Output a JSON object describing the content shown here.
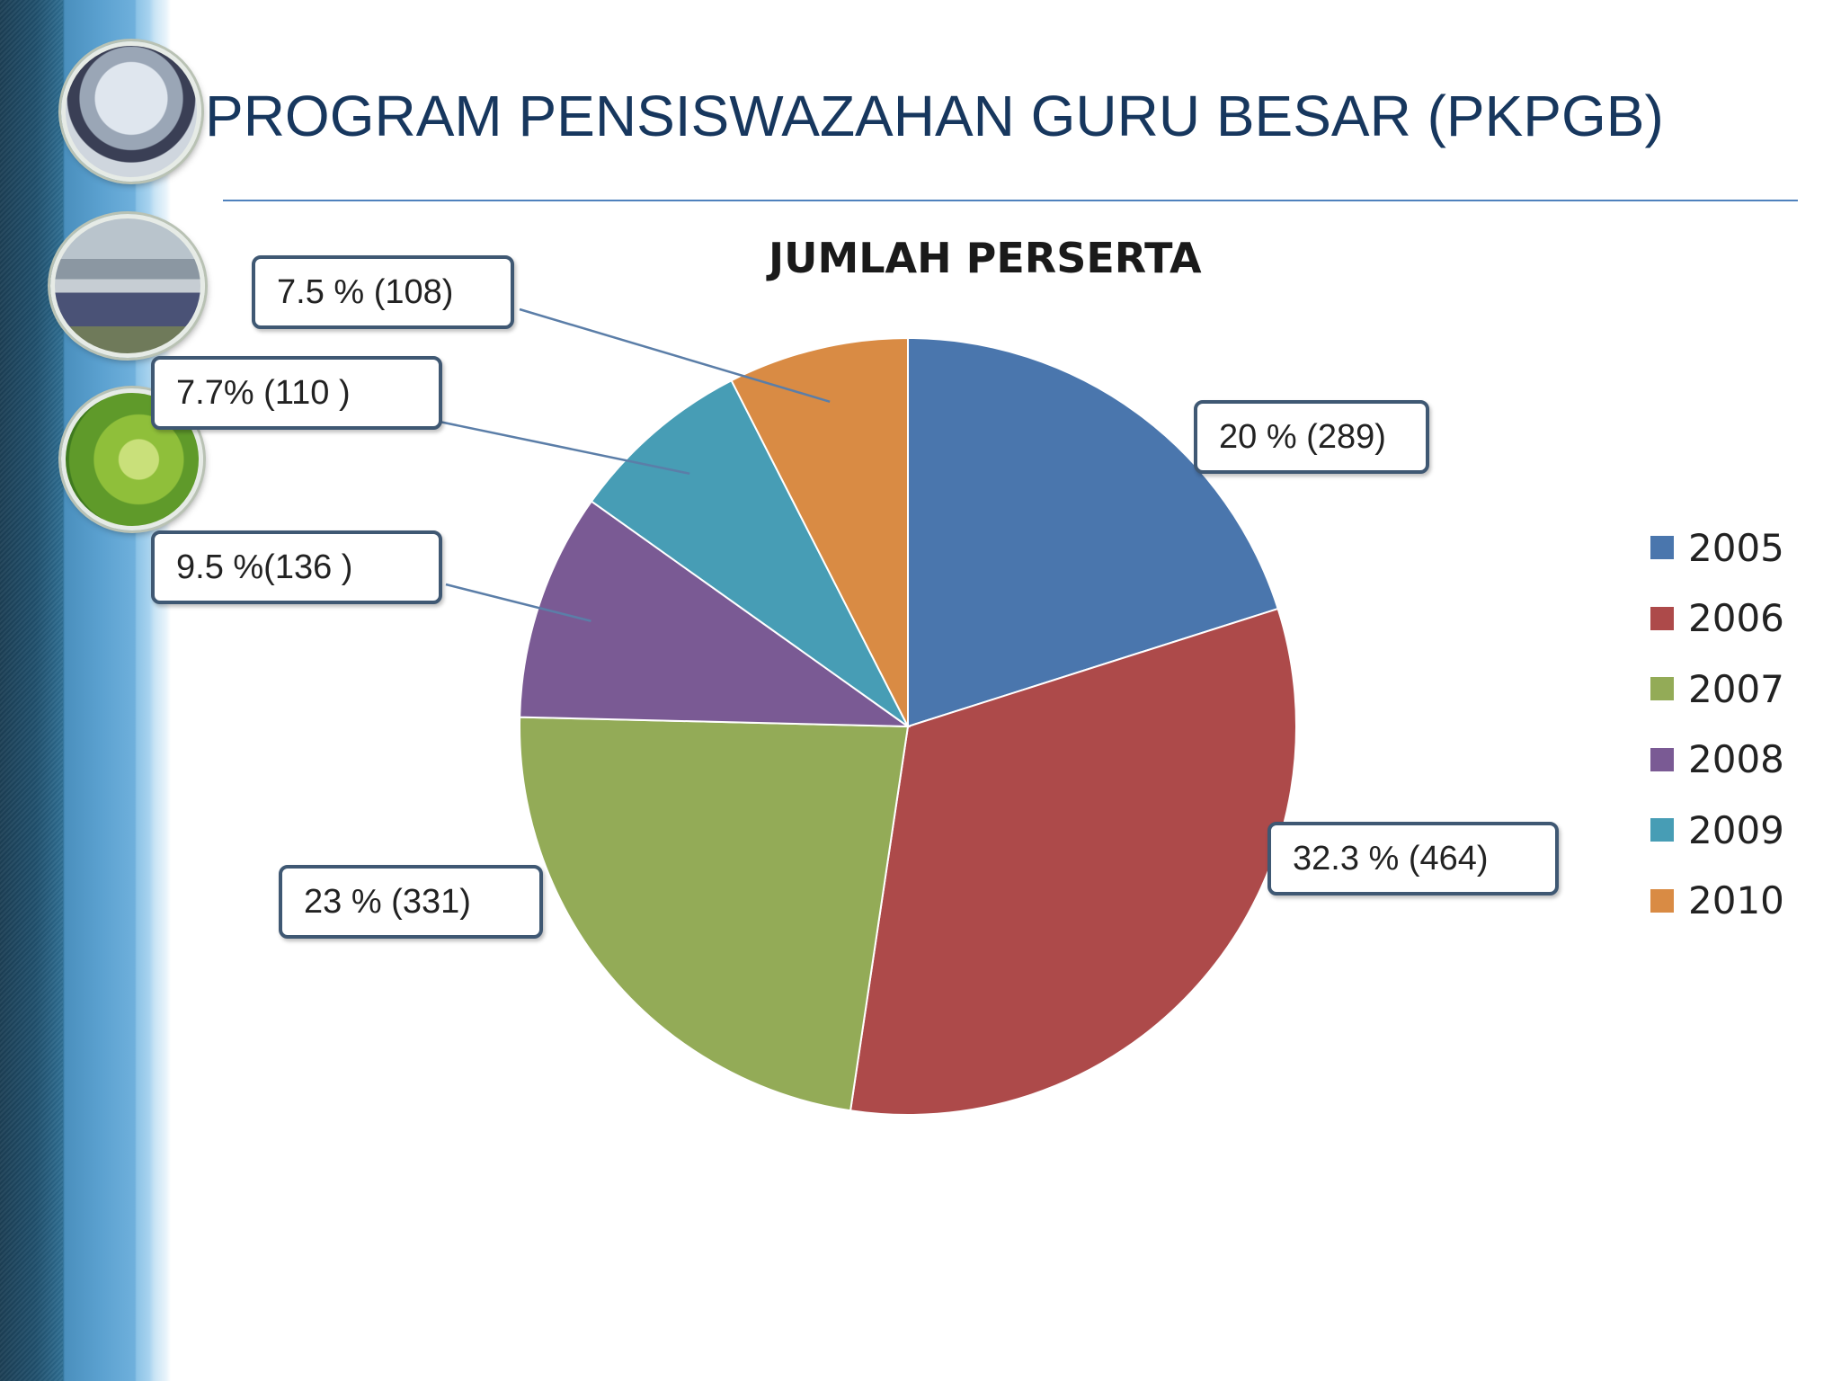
{
  "slide": {
    "title": "PROGRAM PENSISWAZAHAN GURU BESAR (PKPGB)"
  },
  "chart_data": {
    "type": "pie",
    "title": "JUMLAH PERSERTA",
    "categories": [
      "2005",
      "2006",
      "2007",
      "2008",
      "2009",
      "2010"
    ],
    "values": [
      289,
      464,
      331,
      136,
      110,
      108
    ],
    "percentages": [
      20,
      32.3,
      23,
      9.5,
      7.7,
      7.5
    ],
    "colors": [
      "#4a76ad",
      "#ad4a4a",
      "#93ab57",
      "#7a5a94",
      "#479db5",
      "#d98b44"
    ],
    "data_labels": [
      "20 % (289)",
      "32.3 % (464)",
      "23 % (331)",
      "9.5 %(136 )",
      "7.7% (110 )",
      "7.5 % (108)"
    ],
    "legend_position": "right"
  }
}
